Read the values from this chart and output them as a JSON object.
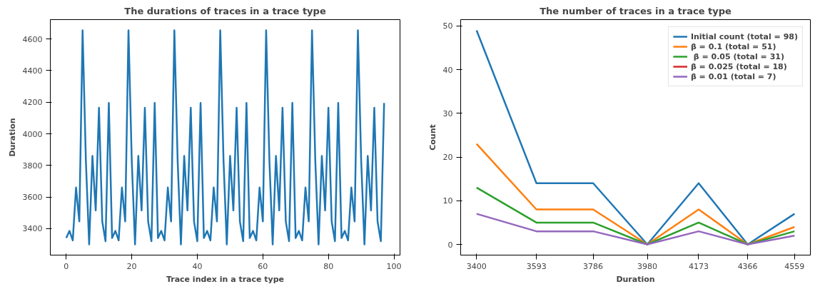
{
  "chart_data": [
    {
      "type": "line",
      "title": "The durations of traces in a trace type",
      "xlabel": "Trace index in a trace type",
      "ylabel": "Duration",
      "x": [
        0,
        1,
        2,
        3,
        4,
        5,
        6,
        7,
        8,
        9,
        10,
        11,
        12,
        13,
        14,
        15,
        16,
        17,
        18,
        19,
        20,
        21,
        22,
        23,
        24,
        25,
        26,
        27,
        28,
        29,
        30,
        31,
        32,
        33,
        34,
        35,
        36,
        37,
        38,
        39,
        40,
        41,
        42,
        43,
        44,
        45,
        46,
        47,
        48,
        49,
        50,
        51,
        52,
        53,
        54,
        55,
        56,
        57,
        58,
        59,
        60,
        61,
        62,
        63,
        64,
        65,
        66,
        67,
        68,
        69,
        70,
        71,
        72,
        73,
        74,
        75,
        76,
        77,
        78,
        79,
        80,
        81,
        82,
        83,
        84,
        85,
        86,
        87,
        88,
        89,
        90,
        91,
        92,
        93,
        94,
        95,
        96,
        97
      ],
      "series": [
        {
          "color": "#1f77b4",
          "values": [
            3340,
            3385,
            3325,
            3660,
            3445,
            4655,
            3830,
            3300,
            3860,
            3515,
            4165,
            3445,
            3320,
            4195,
            3340,
            3385,
            3325,
            3660,
            3445,
            4655,
            3830,
            3300,
            3860,
            3515,
            4165,
            3445,
            3320,
            4195,
            3340,
            3385,
            3325,
            3660,
            3445,
            4655,
            3830,
            3300,
            3860,
            3515,
            4165,
            3445,
            3320,
            4195,
            3340,
            3385,
            3325,
            3660,
            3445,
            4655,
            3830,
            3300,
            3860,
            3515,
            4165,
            3445,
            3320,
            4195,
            3340,
            3385,
            3325,
            3660,
            3445,
            4655,
            3830,
            3300,
            3860,
            3515,
            4165,
            3445,
            3320,
            4195,
            3340,
            3385,
            3325,
            3660,
            3445,
            4655,
            3830,
            3300,
            3860,
            3515,
            4165,
            3445,
            3320,
            4195,
            3340,
            3385,
            3325,
            3660,
            3445,
            4655,
            3830,
            3300,
            3860,
            3515,
            4165,
            3445,
            3320,
            4195
          ]
        }
      ],
      "xlim": [
        -4.85,
        101.85
      ],
      "xticks": [
        0,
        20,
        40,
        60,
        80,
        100
      ],
      "ylim": [
        3232,
        4723
      ],
      "yticks": [
        3400,
        3600,
        3800,
        4000,
        4200,
        4400,
        4600
      ],
      "grid": false,
      "legend": false
    },
    {
      "type": "line",
      "title": "The number of traces in a trace type",
      "xlabel": "Duration",
      "ylabel": "Count",
      "log": "x",
      "x": [
        3400,
        3593,
        3786,
        3980,
        4173,
        4366,
        4559
      ],
      "series": [
        {
          "name": "Initial count (total = 98)",
          "color": "#1f77b4",
          "values": [
            49,
            14,
            14,
            0,
            14,
            0,
            7
          ]
        },
        {
          "name": "β = 0.1 (total = 51)",
          "color": "#ff7f0e",
          "values": [
            23,
            8,
            8,
            0,
            8,
            0,
            4
          ]
        },
        {
          "name": " β = 0.05 (total = 31)",
          "color": "#2ca02c",
          "values": [
            13,
            5,
            5,
            0,
            5,
            0,
            3
          ]
        },
        {
          "name": "β = 0.025 (total = 18)",
          "color": "#d62728",
          "values": [
            null,
            null,
            null,
            null,
            null,
            null,
            null
          ]
        },
        {
          "name": "β = 0.01 (total = 7)",
          "color": "#9467bd",
          "values": [
            7,
            3,
            3,
            0,
            3,
            0,
            2
          ]
        }
      ],
      "xlim": [
        3350.5,
        4626
      ],
      "xticks": [
        3400,
        3593,
        3786,
        3980,
        4173,
        4366,
        4559
      ],
      "ylim": [
        -2.45,
        51.45
      ],
      "yticks": [
        0,
        10,
        20,
        30,
        40,
        50
      ],
      "grid": false,
      "legend": "top right"
    }
  ]
}
